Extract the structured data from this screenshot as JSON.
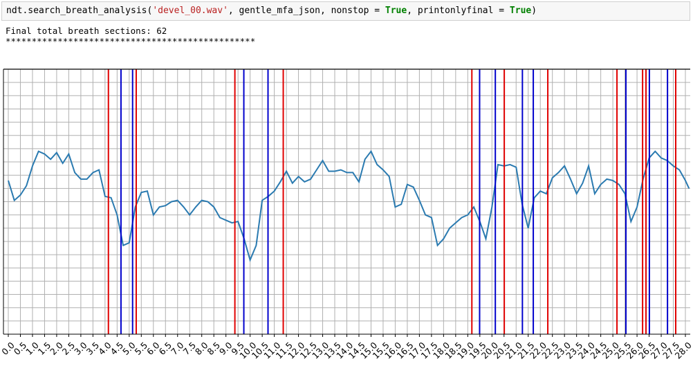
{
  "code": {
    "segments": [
      {
        "text": "ndt.search_breath_analysis(",
        "color": "#000000",
        "bold": false
      },
      {
        "text": "'devel_00.wav'",
        "color": "#ba2121",
        "bold": false
      },
      {
        "text": ", gentle_mfa_json, nonstop = ",
        "color": "#000000",
        "bold": false
      },
      {
        "text": "True",
        "color": "#008000",
        "bold": true
      },
      {
        "text": ", printonlyfinal = ",
        "color": "#000000",
        "bold": false
      },
      {
        "text": "True",
        "color": "#008000",
        "bold": true
      },
      {
        "text": ")",
        "color": "#000000",
        "bold": false
      }
    ]
  },
  "output": {
    "lines": [
      "Final total breath sections: 62",
      "************************************************"
    ]
  },
  "chart_data": {
    "type": "line",
    "grid": true,
    "xlim": [
      -0.2,
      28.2
    ],
    "ylim": [
      0,
      20
    ],
    "xticks": [
      {
        "value": 0,
        "label": "0.0"
      },
      0.5,
      {
        "value": 1,
        "label": "1.0"
      },
      1.5,
      {
        "value": 2,
        "label": "2.0"
      },
      2.5,
      {
        "value": 3,
        "label": "3.0"
      },
      3.5,
      {
        "value": 4,
        "label": "4.0"
      },
      4.5,
      {
        "value": 5,
        "label": "5.0"
      },
      5.5,
      {
        "value": 6,
        "label": "6.0"
      },
      6.5,
      {
        "value": 7,
        "label": "7.0"
      },
      7.5,
      {
        "value": 8,
        "label": "8.0"
      },
      8.5,
      {
        "value": 9,
        "label": "9.0"
      },
      9.5,
      {
        "value": 10,
        "label": "10.0"
      },
      10.5,
      {
        "value": 11,
        "label": "11.0"
      },
      11.5,
      {
        "value": 12,
        "label": "12.0"
      },
      12.5,
      {
        "value": 13,
        "label": "13.0"
      },
      13.5,
      {
        "value": 14,
        "label": "14.0"
      },
      14.5,
      {
        "value": 15,
        "label": "15.0"
      },
      15.5,
      {
        "value": 16,
        "label": "16.0"
      },
      16.5,
      {
        "value": 17,
        "label": "17.0"
      },
      17.5,
      {
        "value": 18,
        "label": "18.0"
      },
      18.5,
      {
        "value": 19,
        "label": "19.0"
      },
      19.5,
      {
        "value": 20,
        "label": "20.0"
      },
      20.5,
      {
        "value": 21,
        "label": "21.0"
      },
      21.5,
      {
        "value": 22,
        "label": "22.0"
      },
      22.5,
      {
        "value": 23,
        "label": "23.0"
      },
      23.5,
      {
        "value": 24,
        "label": "24.0"
      },
      24.5,
      {
        "value": 25,
        "label": "25.0"
      },
      25.5,
      {
        "value": 26,
        "label": "26.0"
      },
      26.5,
      {
        "value": 27,
        "label": "27.0"
      },
      27.5,
      {
        "value": 28,
        "label": "28.0"
      }
    ],
    "yticks": [
      0,
      1,
      2,
      3,
      4,
      5,
      6,
      7,
      8,
      9,
      10,
      11,
      12,
      13,
      14,
      15,
      16,
      17,
      18,
      19,
      20
    ],
    "x": [
      0,
      0.25,
      0.5,
      0.75,
      1,
      1.25,
      1.5,
      1.75,
      2,
      2.25,
      2.5,
      2.75,
      3,
      3.25,
      3.5,
      3.75,
      4,
      4.25,
      4.5,
      4.75,
      5,
      5.25,
      5.5,
      5.75,
      6,
      6.25,
      6.5,
      6.75,
      7,
      7.25,
      7.5,
      7.75,
      8,
      8.25,
      8.5,
      8.75,
      9,
      9.25,
      9.5,
      9.75,
      10,
      10.25,
      10.5,
      10.75,
      11,
      11.25,
      11.5,
      11.75,
      12,
      12.25,
      12.5,
      12.75,
      13,
      13.25,
      13.5,
      13.75,
      14,
      14.25,
      14.5,
      14.75,
      15,
      15.25,
      15.5,
      15.75,
      16,
      16.25,
      16.5,
      16.75,
      17,
      17.25,
      17.5,
      17.75,
      18,
      18.25,
      18.5,
      18.75,
      19,
      19.25,
      19.5,
      19.75,
      20,
      20.25,
      20.5,
      20.75,
      21,
      21.25,
      21.5,
      21.75,
      22,
      22.25,
      22.5,
      22.75,
      23,
      23.25,
      23.5,
      23.75,
      24,
      24.25,
      24.5,
      24.75,
      25,
      25.25,
      25.5,
      25.75,
      26,
      26.25,
      26.5,
      26.75,
      27,
      27.25,
      27.5,
      27.75,
      28,
      28.15
    ],
    "series": [
      {
        "color": "#2a7ab0",
        "values": [
          11.6,
          10.1,
          10.5,
          11.2,
          12.7,
          13.8,
          13.6,
          13.2,
          13.7,
          12.9,
          13.6,
          12.2,
          11.7,
          11.7,
          12.2,
          12.4,
          10.4,
          10.3,
          9.0,
          6.7,
          6.9,
          9.6,
          10.7,
          10.8,
          9.0,
          9.6,
          9.7,
          10.0,
          10.1,
          9.6,
          9.0,
          9.6,
          10.1,
          10.0,
          9.6,
          8.8,
          8.6,
          8.4,
          8.5,
          7.2,
          5.6,
          6.7,
          10.1,
          10.4,
          10.8,
          11.5,
          12.3,
          11.4,
          11.9,
          11.5,
          11.7,
          12.4,
          13.1,
          12.3,
          12.3,
          12.4,
          12.2,
          12.2,
          11.5,
          13.2,
          13.8,
          12.8,
          12.4,
          11.9,
          9.6,
          9.8,
          11.3,
          11.1,
          10.1,
          9.0,
          8.8,
          6.7,
          7.2,
          8.0,
          8.4,
          8.8,
          9.0,
          9.6,
          8.5,
          7.2,
          9.6,
          12.8,
          12.7,
          12.8,
          12.6,
          9.8,
          8.0,
          10.3,
          10.8,
          10.6,
          11.8,
          12.2,
          12.7,
          11.7,
          10.6,
          11.4,
          12.7,
          10.6,
          11.3,
          11.7,
          11.6,
          11.3,
          10.6,
          8.5,
          9.6,
          11.7,
          13.3,
          13.8,
          13.3,
          13.1,
          12.7,
          12.4,
          11.6,
          11.0
        ]
      }
    ],
    "vlines": [
      {
        "color": "#e00000",
        "x": [
          4.14,
          5.29,
          9.37,
          11.37,
          19.17,
          20.51,
          22.31,
          25.17,
          26.23,
          26.37,
          27.6
        ]
      },
      {
        "color": "#0000cc",
        "x": [
          4.66,
          5.14,
          9.74,
          10.74,
          19.49,
          20.14,
          21.26,
          21.71,
          25.54,
          26.51,
          27.26
        ]
      }
    ]
  }
}
